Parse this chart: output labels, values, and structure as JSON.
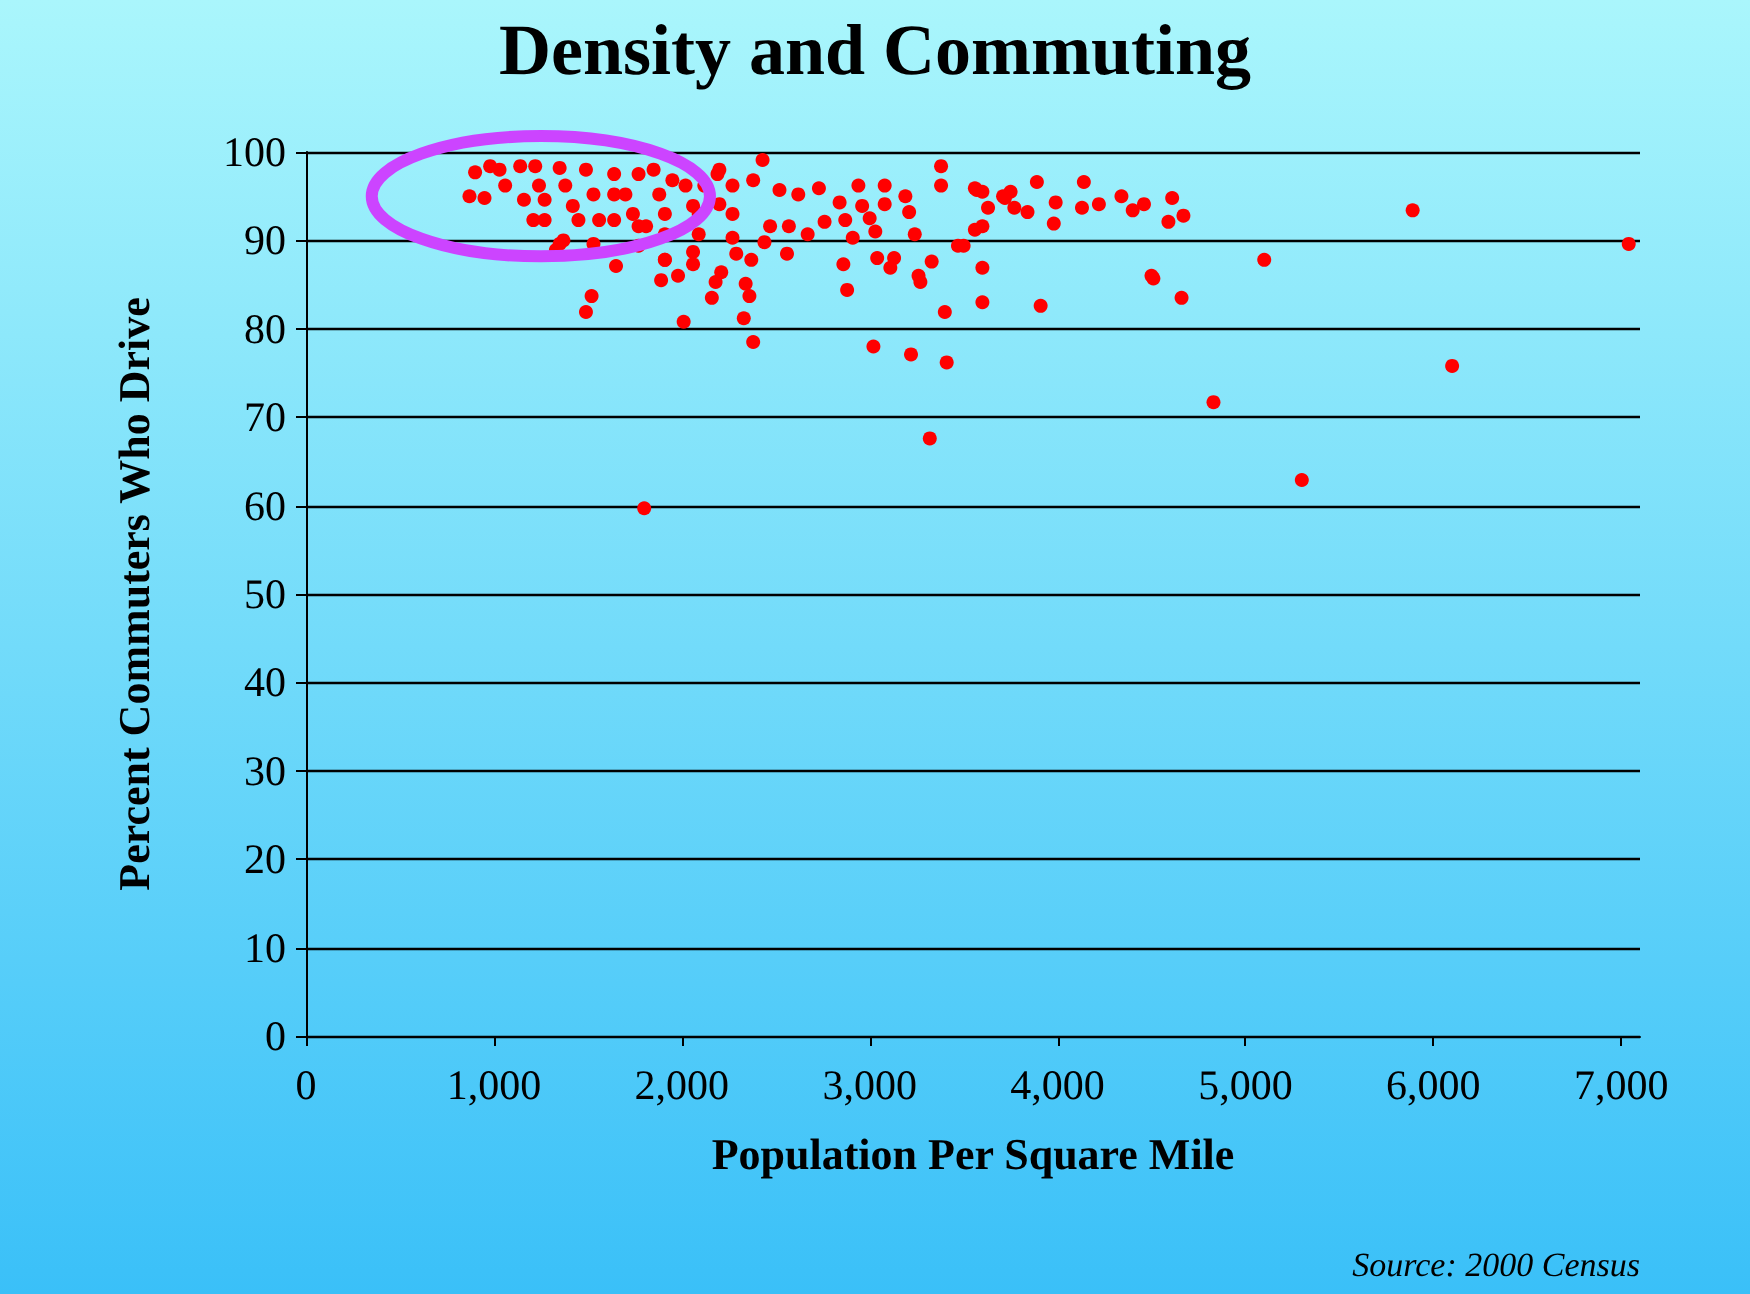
{
  "chart_data": {
    "type": "scatter",
    "title": "Density and Commuting",
    "xlabel": "Population Per Square Mile",
    "ylabel": "Percent Commuters Who Drive",
    "annotations": [
      "Source: 2000 Census"
    ],
    "xlim": [
      0,
      7100
    ],
    "xticks": [
      0,
      {
        "value": 1000,
        "label": "1,000"
      },
      {
        "value": 2000,
        "label": "2,000"
      },
      {
        "value": 3000,
        "label": "3,000"
      },
      {
        "value": 4000,
        "label": "4,000"
      },
      {
        "value": 5000,
        "label": "5,000"
      },
      {
        "value": 6000,
        "label": "6,000"
      },
      {
        "value": 7000,
        "label": "7,000"
      }
    ],
    "ylim": [
      0,
      100
    ],
    "yticks": [
      0,
      10,
      20,
      30,
      40,
      50,
      60,
      70,
      80,
      90,
      100
    ],
    "grid": "y",
    "marker": "circle",
    "series": [
      {
        "color": "#ff0000",
        "x": [
          7040,
          6100,
          5300,
          4830,
          5100,
          5890,
          4510,
          4660,
          4590,
          4610,
          4670,
          4460,
          4400,
          4340,
          4220,
          4140,
          4130,
          3980,
          3990,
          3890,
          3910,
          3840,
          3770,
          3750,
          3710,
          3600,
          3600,
          3600,
          3560,
          3630,
          3600,
          3560,
          3500,
          3320,
          1800,
          3020,
          3220,
          3410,
          2380,
          2010,
          2330,
          1490,
          1520,
          3400,
          3270,
          3260,
          3330,
          3110,
          3130,
          3040,
          2860,
          2880,
          2910,
          2560,
          2370,
          2360,
          2340,
          2160,
          2180,
          2210,
          2060,
          2060,
          1980,
          1890,
          1910,
          2290,
          2440,
          2270,
          3380,
          3380,
          2430,
          3470,
          4500,
          3240,
          3030,
          2760,
          2670,
          2570,
          2470,
          2870,
          3000,
          3210,
          3080,
          2960,
          2840,
          2730,
          2620,
          2520,
          2380,
          2940,
          3080,
          3190,
          3570,
          3720,
          2190,
          2270,
          2200,
          2090,
          2270,
          2090,
          1910,
          1770,
          1530,
          1370,
          870,
          900,
          980,
          950,
          1030,
          1060,
          1140,
          1160,
          1220,
          1240,
          1210,
          1270,
          1350,
          1380,
          1420,
          1350,
          1330,
          1490,
          1530,
          1560,
          1640,
          1700,
          1740,
          1770,
          1850,
          1880,
          1910,
          1950,
          2020,
          2060,
          1810,
          1640,
          1450,
          2200,
          1770,
          1910,
          1650,
          1270,
          1640,
          2120
        ],
        "values": [
          89.6,
          75.8,
          62.9,
          71.7,
          87.8,
          93.4,
          85.7,
          83.5,
          92.1,
          94.8,
          92.8,
          94.1,
          93.4,
          95,
          94.1,
          96.6,
          93.7,
          91.9,
          94.3,
          96.6,
          82.6,
          93.2,
          93.7,
          95.5,
          95,
          86.9,
          83,
          91.6,
          91.2,
          93.7,
          95.5,
          95.9,
          89.4,
          67.6,
          59.7,
          78,
          77.1,
          76.2,
          78.5,
          80.8,
          81.2,
          81.9,
          83.7,
          81.9,
          85.3,
          86,
          87.6,
          86.9,
          88,
          88,
          87.3,
          84.4,
          90.3,
          88.5,
          87.8,
          83.7,
          85.1,
          83.5,
          85.3,
          86.4,
          87.3,
          88.7,
          86,
          85.5,
          87.8,
          88.5,
          89.8,
          90.3,
          98.4,
          96.2,
          99.1,
          89.4,
          86,
          90.7,
          91,
          92.1,
          90.7,
          91.6,
          91.6,
          92.3,
          92.5,
          93.2,
          94.1,
          93.9,
          94.3,
          95.9,
          95.2,
          95.7,
          96.8,
          96.2,
          96.2,
          95,
          95.7,
          94.8,
          97.5,
          96.2,
          94.1,
          93,
          93,
          90.7,
          90.7,
          91.6,
          89.6,
          90,
          95,
          97.7,
          98.4,
          94.8,
          98,
          96.2,
          98.4,
          94.6,
          98.4,
          96.2,
          92.3,
          92.3,
          98.2,
          96.2,
          93.9,
          89.6,
          88.9,
          98,
          95.2,
          92.3,
          97.5,
          95.2,
          93,
          97.5,
          98,
          95.2,
          93,
          96.8,
          96.2,
          93.9,
          91.6,
          92.3,
          92.3,
          98,
          89.4,
          87.8,
          87.1,
          94.6,
          95.2,
          96.2
        ]
      }
    ]
  }
}
